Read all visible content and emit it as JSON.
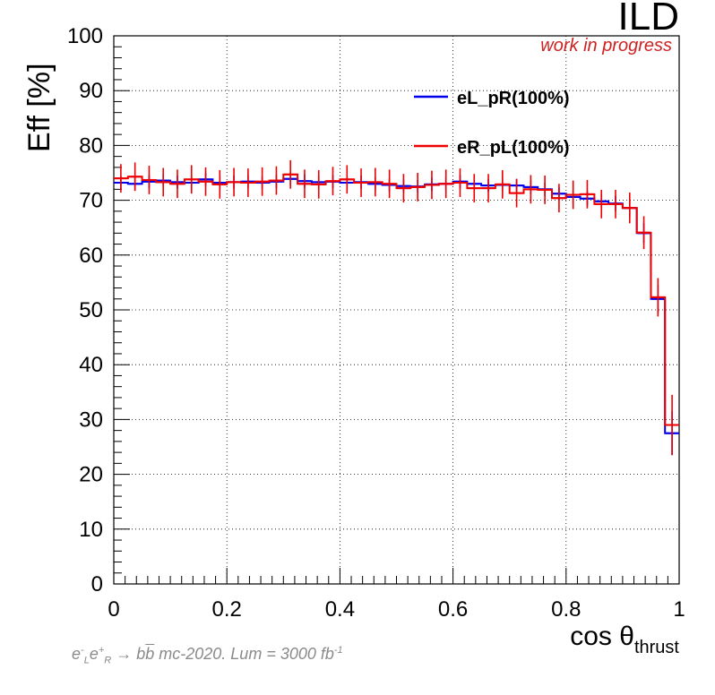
{
  "chart_data": {
    "type": "line",
    "title": "",
    "xlabel": "cos θthrust",
    "xlabel_main": "cos θ",
    "xlabel_sub": "thrust",
    "ylabel": "Eff [%]",
    "xlim": [
      0,
      1
    ],
    "ylim": [
      0,
      100
    ],
    "grid": true,
    "legend_position": "top-right",
    "x_ticks": [
      "0",
      "0.2",
      "0.4",
      "0.6",
      "0.8",
      "1"
    ],
    "y_ticks": [
      "0",
      "10",
      "20",
      "30",
      "40",
      "50",
      "60",
      "70",
      "80",
      "90",
      "100"
    ],
    "series": [
      {
        "name": "eL_pR(100%)",
        "color": "#0000ee",
        "x": [
          0.0125,
          0.0375,
          0.0625,
          0.0875,
          0.1125,
          0.1375,
          0.1625,
          0.1875,
          0.2125,
          0.2375,
          0.2625,
          0.2875,
          0.3125,
          0.3375,
          0.3625,
          0.3875,
          0.4125,
          0.4375,
          0.4625,
          0.4875,
          0.5125,
          0.5375,
          0.5625,
          0.5875,
          0.6125,
          0.6375,
          0.6625,
          0.6875,
          0.7125,
          0.7375,
          0.7625,
          0.7875,
          0.8125,
          0.8375,
          0.8625,
          0.8875,
          0.9125,
          0.9375,
          0.9625,
          0.9875
        ],
        "values": [
          73.2,
          73.0,
          73.4,
          73.6,
          73.3,
          73.2,
          73.8,
          73.2,
          73.3,
          73.4,
          73.2,
          73.4,
          73.9,
          73.5,
          73.3,
          73.4,
          73.2,
          73.3,
          73.0,
          72.8,
          72.6,
          72.5,
          72.9,
          73.0,
          73.4,
          73.0,
          72.7,
          72.8,
          72.7,
          72.4,
          72.0,
          71.2,
          70.6,
          70.3,
          69.8,
          69.4,
          68.6,
          64.0,
          52.0,
          27.5
        ],
        "errors": [
          1.2,
          1.2,
          1.2,
          1.2,
          1.2,
          1.2,
          1.2,
          1.2,
          1.2,
          1.2,
          1.2,
          1.2,
          1.2,
          1.2,
          1.2,
          1.2,
          1.2,
          1.2,
          1.2,
          1.2,
          1.2,
          1.2,
          1.2,
          1.2,
          1.2,
          1.2,
          1.2,
          1.2,
          1.2,
          1.2,
          1.2,
          1.2,
          1.2,
          1.3,
          1.3,
          1.4,
          1.5,
          1.8,
          2.5,
          4.0
        ]
      },
      {
        "name": "eR_pL(100%)",
        "color": "#ee0000",
        "x": [
          0.0125,
          0.0375,
          0.0625,
          0.0875,
          0.1125,
          0.1375,
          0.1625,
          0.1875,
          0.2125,
          0.2375,
          0.2625,
          0.2875,
          0.3125,
          0.3375,
          0.3625,
          0.3875,
          0.4125,
          0.4375,
          0.4625,
          0.4875,
          0.5125,
          0.5375,
          0.5625,
          0.5875,
          0.6125,
          0.6375,
          0.6625,
          0.6875,
          0.7125,
          0.7375,
          0.7625,
          0.7875,
          0.8125,
          0.8375,
          0.8625,
          0.8875,
          0.9125,
          0.9375,
          0.9625,
          0.9875
        ],
        "values": [
          74.0,
          74.3,
          73.7,
          73.3,
          73.0,
          73.8,
          73.4,
          72.9,
          73.3,
          73.2,
          73.4,
          73.6,
          74.7,
          73.0,
          72.9,
          73.5,
          73.8,
          73.2,
          73.3,
          73.0,
          72.2,
          72.4,
          72.8,
          73.0,
          73.2,
          72.2,
          72.2,
          72.9,
          71.3,
          72.0,
          71.9,
          70.4,
          71.0,
          71.1,
          69.3,
          69.3,
          68.6,
          64.1,
          52.3,
          29.0
        ],
        "errors": [
          2.6,
          2.6,
          2.6,
          2.6,
          2.6,
          2.6,
          2.6,
          2.6,
          2.6,
          2.6,
          2.6,
          2.6,
          2.6,
          2.6,
          2.6,
          2.6,
          2.6,
          2.6,
          2.6,
          2.6,
          2.6,
          2.6,
          2.6,
          2.6,
          2.6,
          2.6,
          2.6,
          2.6,
          2.6,
          2.6,
          2.6,
          2.6,
          2.6,
          2.6,
          2.6,
          2.6,
          2.8,
          3.0,
          3.5,
          5.5
        ]
      }
    ]
  },
  "labels": {
    "experiment": "ILD",
    "status": "work in progress",
    "footnote_process": "→ b",
    "footnote_bbar": "b",
    "footnote_text": " mc-2020. Lum = 3000 fb",
    "footnote_lumi_exp": "-1",
    "footnote_e1": "e",
    "footnote_e1_sup": "-",
    "footnote_e1_sub": "L",
    "footnote_e2": "e",
    "footnote_e2_sup": "+",
    "footnote_e2_sub": "R"
  }
}
